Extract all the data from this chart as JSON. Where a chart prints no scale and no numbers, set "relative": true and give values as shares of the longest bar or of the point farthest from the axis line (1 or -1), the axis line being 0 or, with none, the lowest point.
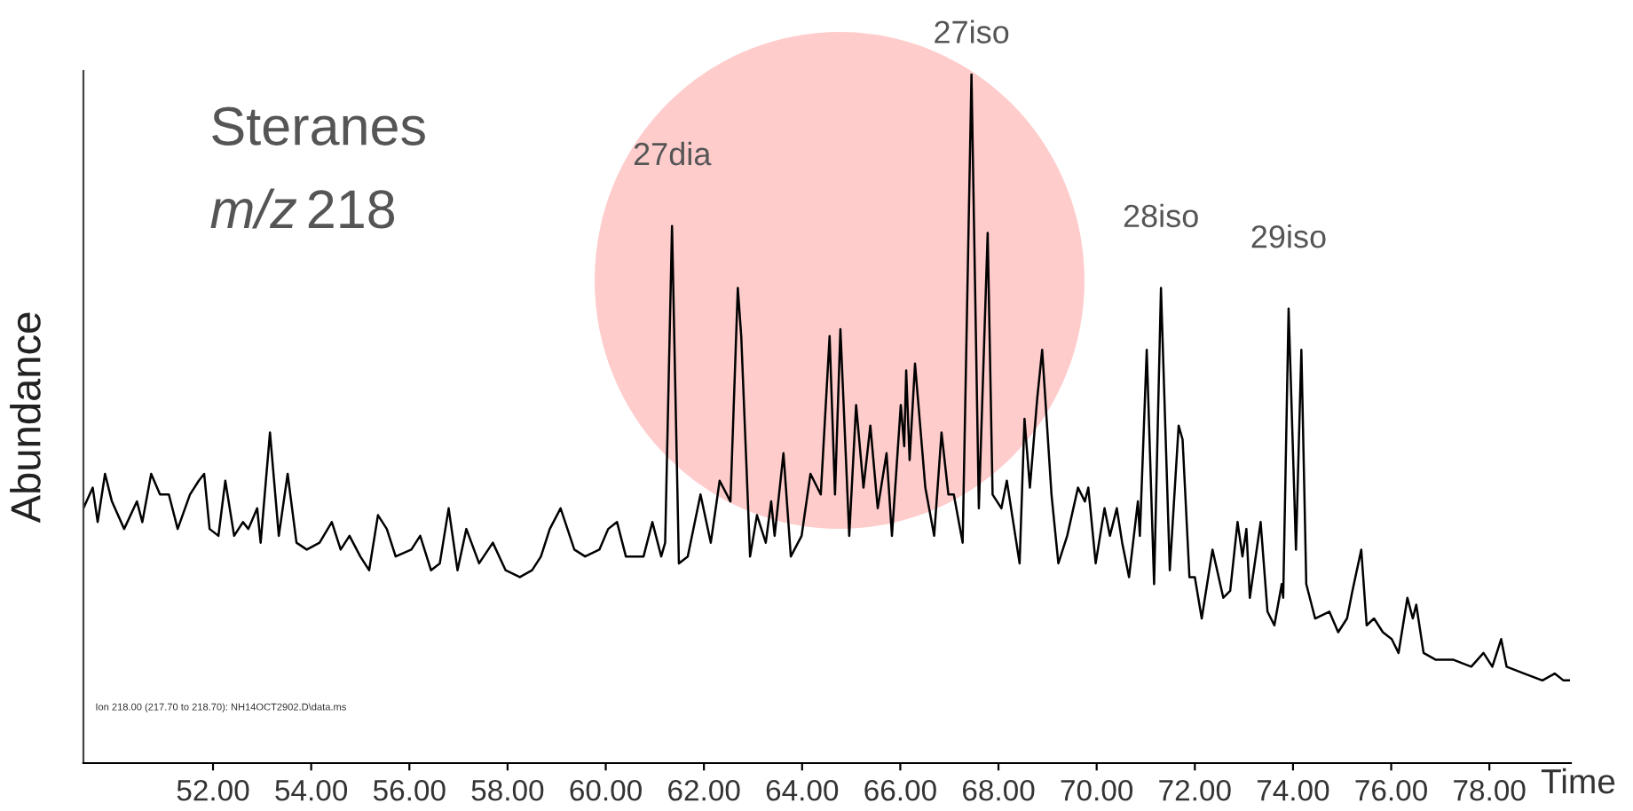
{
  "chart_data": {
    "type": "line",
    "title": "Steranes",
    "subtitle": "m/z 218",
    "xlabel": "Time",
    "ylabel": "Abundance",
    "relative": true,
    "xlim": [
      49.36,
      79.66
    ],
    "xticks": [
      {
        "value": 52,
        "label": "52.00"
      },
      {
        "value": 54,
        "label": "54.00"
      },
      {
        "value": 56,
        "label": "56.00"
      },
      {
        "value": 58,
        "label": "58.00"
      },
      {
        "value": 60,
        "label": "60.00"
      },
      {
        "value": 62,
        "label": "62.00"
      },
      {
        "value": 64,
        "label": "64.00"
      },
      {
        "value": 66,
        "label": "66.00"
      },
      {
        "value": 68,
        "label": "68.00"
      },
      {
        "value": 70,
        "label": "70.00"
      },
      {
        "value": 72,
        "label": "72.00"
      },
      {
        "value": 74,
        "label": "74.00"
      },
      {
        "value": 76,
        "label": "76.00"
      },
      {
        "value": 78,
        "label": "78.00"
      }
    ],
    "tick_labels": "x",
    "grid": false,
    "marker": "none",
    "line_style": "solid",
    "annotations": [
      {
        "text": "27dia",
        "x": 61.35,
        "y": 0.78
      },
      {
        "text": "27iso",
        "x": 67.45,
        "y": 1.0
      },
      {
        "text": "28iso",
        "x": 71.31,
        "y": 0.69
      },
      {
        "text": "29iso",
        "x": 73.91,
        "y": 0.66
      },
      "Ion 218.00 (217.70 to 218.70): NH14OCT2902.D\\data.ms"
    ],
    "series": [
      {
        "color": "#000000",
        "x": [
          49.36,
          49.55,
          49.65,
          49.8,
          49.94,
          50.19,
          50.45,
          50.56,
          50.74,
          50.92,
          51.1,
          51.28,
          51.53,
          51.71,
          51.82,
          51.93,
          52.11,
          52.25,
          52.43,
          52.61,
          52.72,
          52.9,
          52.97,
          53.16,
          53.34,
          53.52,
          53.7,
          53.91,
          54.17,
          54.42,
          54.6,
          54.78,
          55.0,
          55.18,
          55.36,
          55.54,
          55.72,
          56.04,
          56.22,
          56.44,
          56.62,
          56.8,
          56.98,
          57.16,
          57.42,
          57.7,
          57.96,
          58.25,
          58.5,
          58.68,
          58.86,
          59.08,
          59.22,
          59.36,
          59.58,
          59.87,
          60.05,
          60.23,
          60.41,
          60.77,
          60.95,
          61.13,
          61.21,
          61.35,
          61.49,
          61.67,
          61.93,
          62.14,
          62.32,
          62.54,
          62.69,
          62.76,
          62.94,
          63.08,
          63.26,
          63.37,
          63.44,
          63.62,
          63.77,
          63.99,
          64.17,
          64.38,
          64.56,
          64.67,
          64.78,
          64.96,
          65.1,
          65.25,
          65.39,
          65.54,
          65.72,
          65.83,
          66.01,
          66.08,
          66.12,
          66.19,
          66.3,
          66.51,
          66.69,
          66.84,
          66.98,
          67.09,
          67.27,
          67.45,
          67.6,
          67.78,
          67.88,
          68.06,
          68.17,
          68.43,
          68.53,
          68.64,
          68.79,
          68.89,
          69.08,
          69.22,
          69.4,
          69.62,
          69.76,
          69.83,
          69.98,
          70.16,
          70.27,
          70.41,
          70.52,
          70.66,
          70.84,
          70.88,
          71.02,
          71.17,
          71.31,
          71.49,
          71.67,
          71.75,
          71.89,
          72.0,
          72.14,
          72.36,
          72.58,
          72.72,
          72.87,
          72.97,
          73.05,
          73.12,
          73.34,
          73.48,
          73.62,
          73.77,
          73.8,
          73.91,
          74.06,
          74.17,
          74.27,
          74.45,
          74.74,
          74.92,
          75.1,
          75.21,
          75.39,
          75.5,
          75.65,
          75.83,
          76.01,
          76.15,
          76.33,
          76.44,
          76.51,
          76.66,
          76.91,
          77.27,
          77.63,
          77.88,
          78.06,
          78.24,
          78.35,
          78.71,
          79.08,
          79.33,
          79.51,
          79.62
        ],
        "values": [
          0.37,
          0.4,
          0.35,
          0.42,
          0.38,
          0.34,
          0.38,
          0.35,
          0.42,
          0.39,
          0.39,
          0.34,
          0.39,
          0.41,
          0.42,
          0.34,
          0.33,
          0.41,
          0.33,
          0.35,
          0.34,
          0.37,
          0.32,
          0.48,
          0.33,
          0.42,
          0.32,
          0.31,
          0.32,
          0.35,
          0.31,
          0.33,
          0.3,
          0.28,
          0.36,
          0.34,
          0.3,
          0.31,
          0.33,
          0.28,
          0.29,
          0.37,
          0.28,
          0.34,
          0.29,
          0.32,
          0.28,
          0.27,
          0.28,
          0.3,
          0.34,
          0.37,
          0.34,
          0.31,
          0.3,
          0.31,
          0.34,
          0.35,
          0.3,
          0.3,
          0.35,
          0.3,
          0.32,
          0.78,
          0.29,
          0.3,
          0.39,
          0.32,
          0.41,
          0.38,
          0.69,
          0.62,
          0.3,
          0.36,
          0.32,
          0.38,
          0.33,
          0.45,
          0.3,
          0.33,
          0.42,
          0.39,
          0.62,
          0.39,
          0.63,
          0.33,
          0.52,
          0.4,
          0.49,
          0.37,
          0.45,
          0.33,
          0.52,
          0.46,
          0.57,
          0.44,
          0.58,
          0.4,
          0.33,
          0.48,
          0.39,
          0.39,
          0.32,
          1.0,
          0.37,
          0.77,
          0.39,
          0.37,
          0.41,
          0.29,
          0.5,
          0.4,
          0.53,
          0.6,
          0.39,
          0.29,
          0.33,
          0.4,
          0.38,
          0.4,
          0.29,
          0.37,
          0.33,
          0.37,
          0.32,
          0.27,
          0.38,
          0.33,
          0.6,
          0.26,
          0.69,
          0.28,
          0.49,
          0.47,
          0.27,
          0.27,
          0.21,
          0.31,
          0.24,
          0.25,
          0.35,
          0.3,
          0.34,
          0.24,
          0.35,
          0.22,
          0.2,
          0.26,
          0.24,
          0.66,
          0.31,
          0.6,
          0.26,
          0.21,
          0.22,
          0.19,
          0.21,
          0.25,
          0.31,
          0.2,
          0.21,
          0.19,
          0.18,
          0.16,
          0.24,
          0.21,
          0.23,
          0.16,
          0.15,
          0.15,
          0.14,
          0.16,
          0.14,
          0.18,
          0.14,
          0.13,
          0.12,
          0.13,
          0.12,
          0.12
        ]
      }
    ]
  }
}
